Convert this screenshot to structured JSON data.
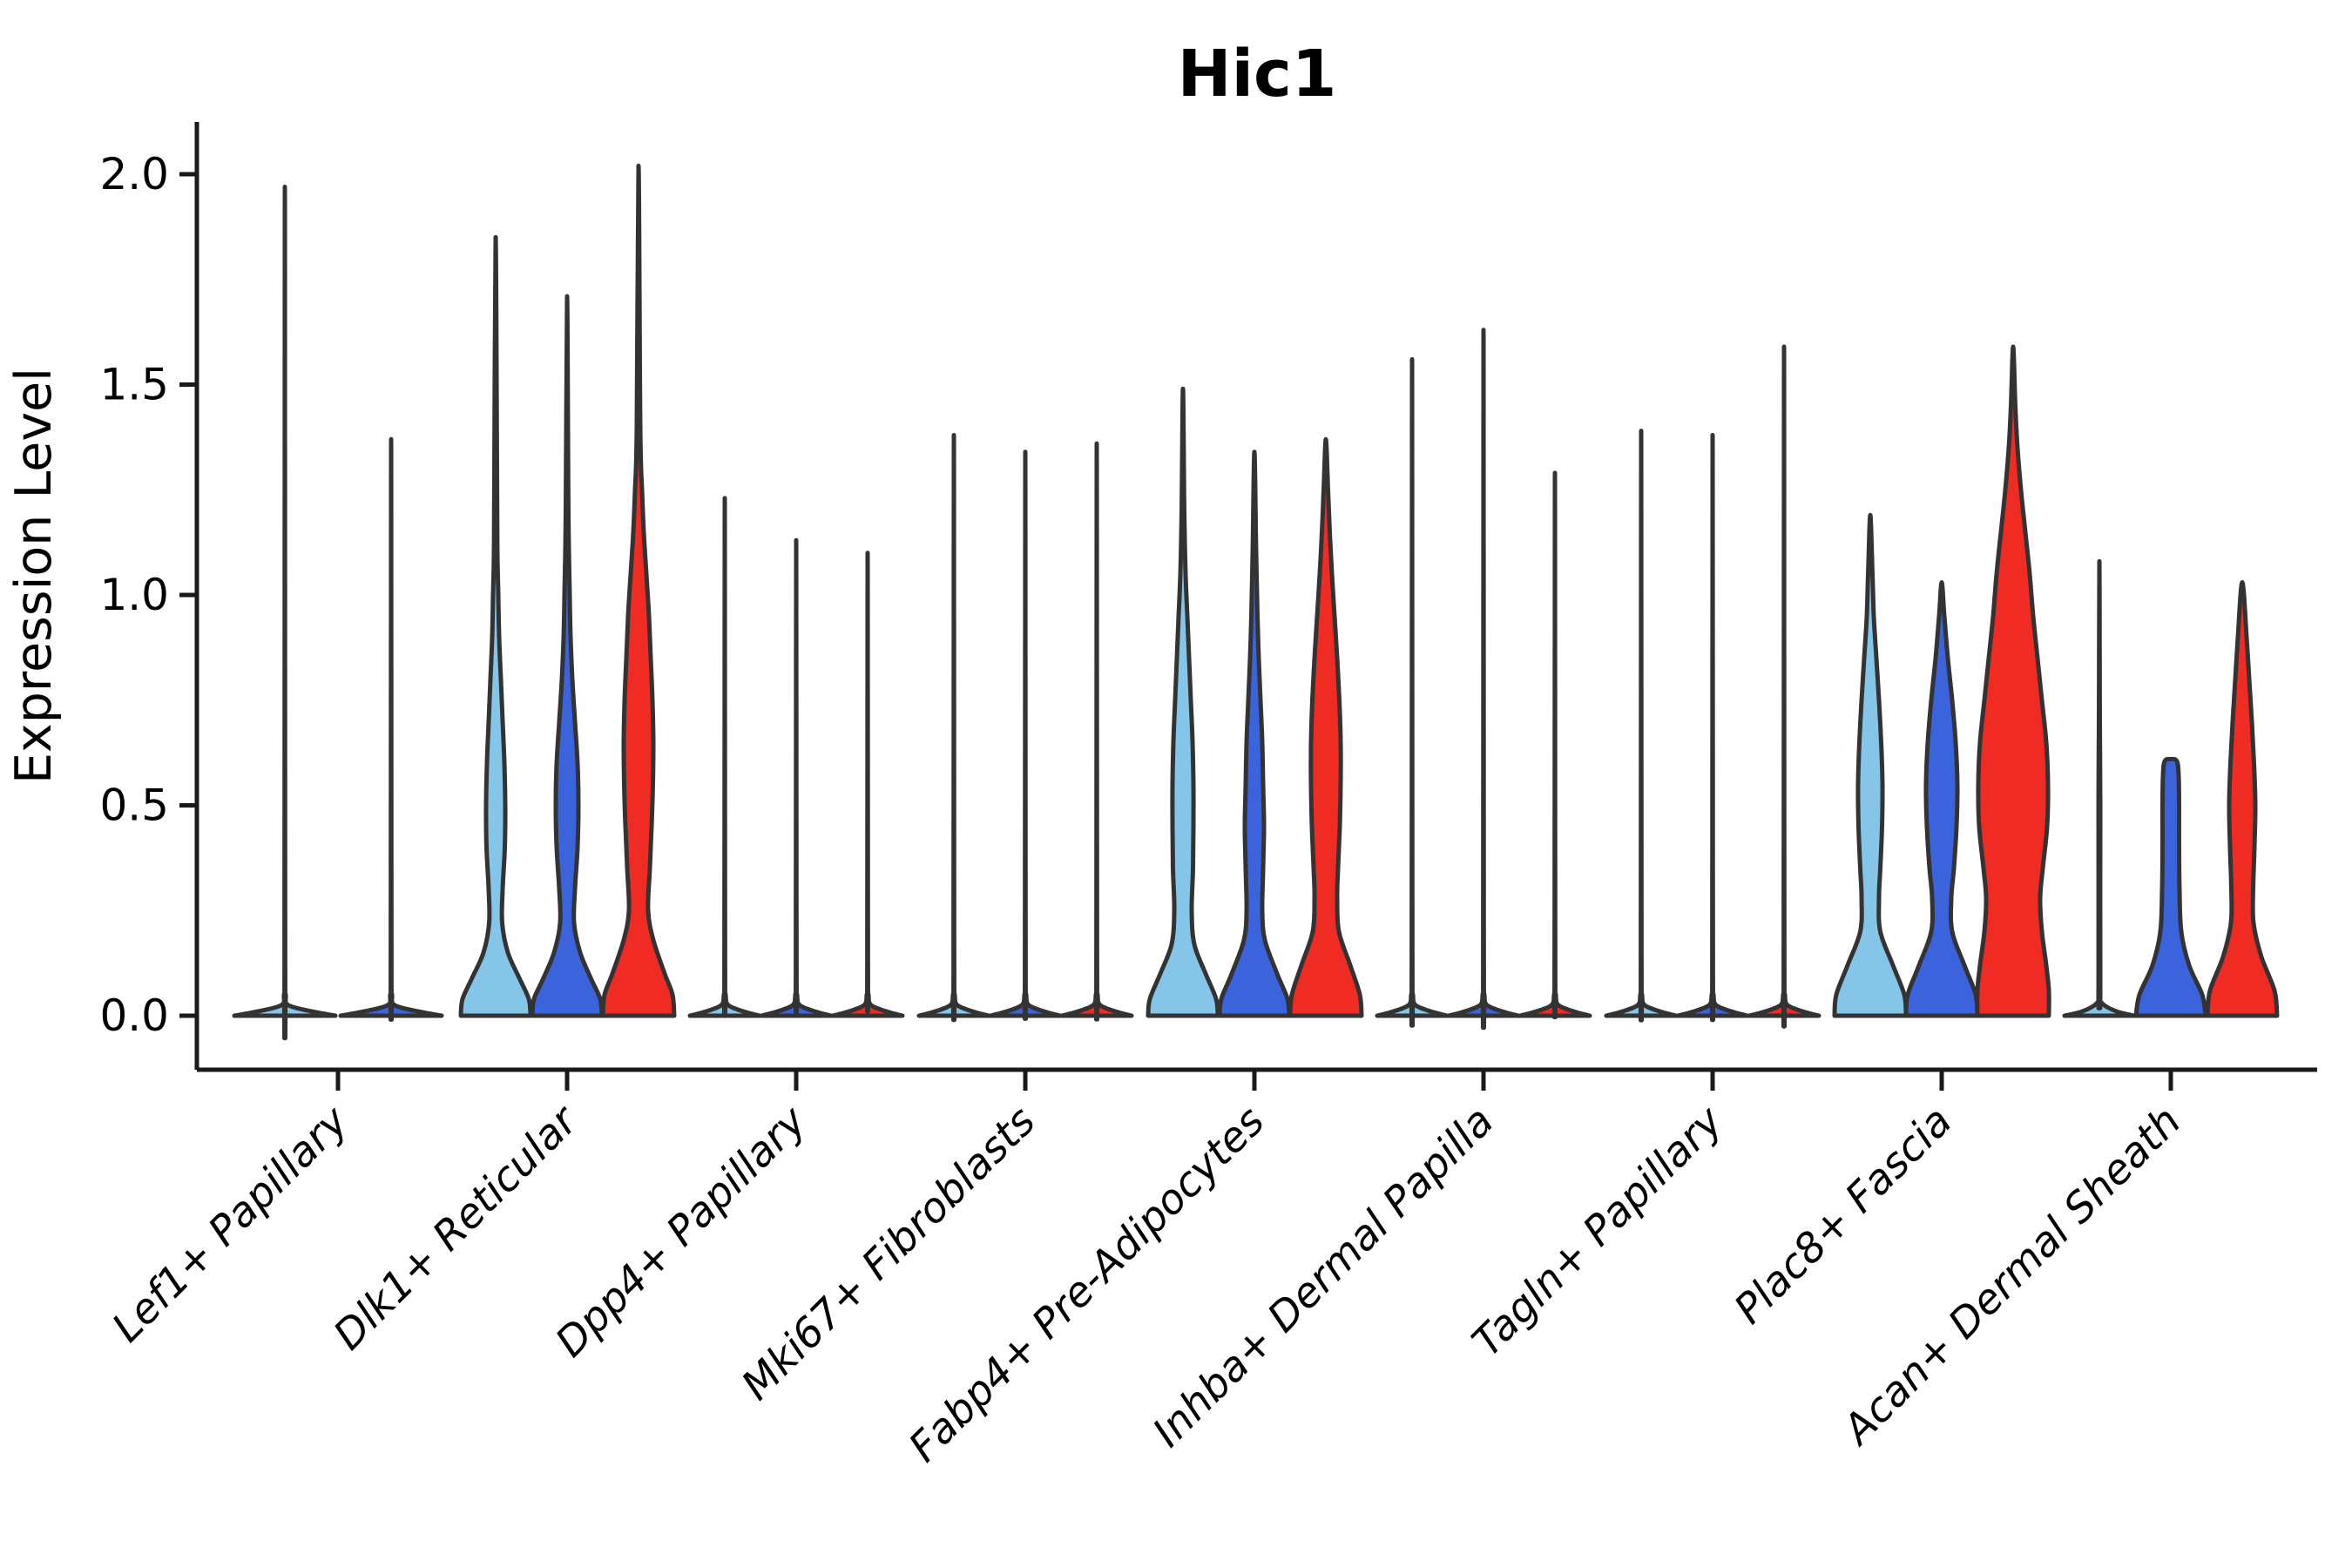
{
  "chart_data": {
    "type": "violin",
    "title": "Hic1",
    "xlabel": "",
    "ylabel": "Expression Level",
    "ylim": [
      -0.13,
      2.13
    ],
    "grid": false,
    "legend": "none",
    "ytick_labels": [
      "2.0",
      "1.5",
      "1.0",
      "0.5",
      "0.0"
    ],
    "ytick_values": [
      2.0,
      1.5,
      1.0,
      0.5,
      0.0
    ],
    "categories": [
      "Lef1+ Papillary",
      "Dlk1+ Reticular",
      "Dpp4+ Papillary",
      "Mki67+ Fibroblasts",
      "Fabp4+ Pre-Adipocytes",
      "Inhba+ Dermal Papilla",
      "Tagln+ Papillary",
      "Plac8+ Fascia",
      "Acan+ Dermal Sheath"
    ],
    "split_colors": {
      "lightblue": "#85C6E8",
      "darkblue": "#3A63DC",
      "red": "#EF2B24"
    },
    "outline_color": "#333333",
    "axis_color": "#1A1A1A",
    "groups": [
      {
        "category": "Lef1+ Papillary",
        "violins": [
          {
            "split": "lightblue",
            "offset": -61,
            "pancake": true,
            "halfwidth": 58,
            "max": 1.97
          },
          {
            "split": "darkblue",
            "offset": 61,
            "pancake": true,
            "halfwidth": 58,
            "max": 1.37
          }
        ]
      },
      {
        "category": "Dlk1+ Reticular",
        "violins": [
          {
            "split": "lightblue",
            "offset": -82,
            "max": 1.85,
            "profile": [
              [
                0,
                40
              ],
              [
                0.04,
                38
              ],
              [
                0.09,
                27
              ],
              [
                0.15,
                14
              ],
              [
                0.22,
                7.5
              ],
              [
                0.3,
                8
              ],
              [
                0.4,
                10.5
              ],
              [
                0.5,
                11
              ],
              [
                0.6,
                10
              ],
              [
                0.7,
                8
              ],
              [
                0.8,
                6
              ],
              [
                0.9,
                4
              ],
              [
                1.0,
                3
              ],
              [
                1.1,
                2
              ],
              [
                1.3,
                1.5
              ],
              [
                1.85,
                0
              ]
            ]
          },
          {
            "split": "darkblue",
            "offset": 0,
            "max": 1.71,
            "profile": [
              [
                0,
                40
              ],
              [
                0.04,
                38
              ],
              [
                0.09,
                27
              ],
              [
                0.15,
                15
              ],
              [
                0.22,
                8
              ],
              [
                0.3,
                9
              ],
              [
                0.4,
                12
              ],
              [
                0.5,
                13
              ],
              [
                0.6,
                12
              ],
              [
                0.7,
                9
              ],
              [
                0.8,
                6
              ],
              [
                0.9,
                4
              ],
              [
                1.0,
                3
              ],
              [
                1.2,
                1.5
              ],
              [
                1.71,
                0
              ]
            ]
          },
          {
            "split": "red",
            "offset": 82,
            "max": 2.02,
            "profile": [
              [
                0,
                41
              ],
              [
                0.05,
                39
              ],
              [
                0.1,
                30
              ],
              [
                0.18,
                17
              ],
              [
                0.25,
                11
              ],
              [
                0.35,
                13
              ],
              [
                0.45,
                15
              ],
              [
                0.55,
                16.5
              ],
              [
                0.65,
                17
              ],
              [
                0.75,
                16
              ],
              [
                0.85,
                14
              ],
              [
                0.95,
                12
              ],
              [
                1.05,
                9
              ],
              [
                1.15,
                6
              ],
              [
                1.25,
                4
              ],
              [
                1.4,
                2
              ],
              [
                2.02,
                0
              ]
            ]
          }
        ]
      },
      {
        "category": "Dpp4+ Papillary",
        "violins": [
          {
            "split": "lightblue",
            "offset": -82,
            "pancake": true,
            "halfwidth": 40,
            "max": 1.23
          },
          {
            "split": "darkblue",
            "offset": 0,
            "pancake": true,
            "halfwidth": 40,
            "max": 1.13
          },
          {
            "split": "red",
            "offset": 82,
            "pancake": true,
            "halfwidth": 40,
            "max": 1.1
          }
        ]
      },
      {
        "category": "Mki67+ Fibroblasts",
        "violins": [
          {
            "split": "lightblue",
            "offset": -82,
            "pancake": true,
            "halfwidth": 40,
            "max": 1.38
          },
          {
            "split": "darkblue",
            "offset": 0,
            "pancake": true,
            "halfwidth": 40,
            "max": 1.34
          },
          {
            "split": "red",
            "offset": 82,
            "pancake": true,
            "halfwidth": 40,
            "max": 1.36
          }
        ]
      },
      {
        "category": "Fabp4+ Pre-Adipocytes",
        "violins": [
          {
            "split": "lightblue",
            "offset": -82,
            "max": 1.49,
            "profile": [
              [
                0,
                40
              ],
              [
                0.04,
                38
              ],
              [
                0.1,
                26
              ],
              [
                0.17,
                13
              ],
              [
                0.25,
                10
              ],
              [
                0.35,
                11.5
              ],
              [
                0.45,
                12
              ],
              [
                0.55,
                12
              ],
              [
                0.65,
                11
              ],
              [
                0.75,
                9
              ],
              [
                0.85,
                7
              ],
              [
                0.95,
                5
              ],
              [
                1.05,
                3
              ],
              [
                1.2,
                1.5
              ],
              [
                1.49,
                0
              ]
            ]
          },
          {
            "split": "darkblue",
            "offset": 0,
            "max": 1.34,
            "profile": [
              [
                0,
                40
              ],
              [
                0.04,
                38
              ],
              [
                0.1,
                26
              ],
              [
                0.18,
                12
              ],
              [
                0.25,
                9
              ],
              [
                0.35,
                10
              ],
              [
                0.45,
                11
              ],
              [
                0.55,
                10
              ],
              [
                0.65,
                9
              ],
              [
                0.75,
                7
              ],
              [
                0.85,
                5
              ],
              [
                0.95,
                3.5
              ],
              [
                1.1,
                2
              ],
              [
                1.34,
                0
              ]
            ]
          },
          {
            "split": "red",
            "offset": 82,
            "max": 1.37,
            "profile": [
              [
                0,
                41
              ],
              [
                0.05,
                39
              ],
              [
                0.12,
                28
              ],
              [
                0.2,
                15
              ],
              [
                0.28,
                13
              ],
              [
                0.35,
                14
              ],
              [
                0.45,
                16
              ],
              [
                0.55,
                17
              ],
              [
                0.65,
                17
              ],
              [
                0.75,
                15.5
              ],
              [
                0.85,
                13
              ],
              [
                0.95,
                10
              ],
              [
                1.05,
                7
              ],
              [
                1.15,
                4.5
              ],
              [
                1.25,
                2.5
              ],
              [
                1.37,
                0
              ]
            ]
          }
        ]
      },
      {
        "category": "Inhba+ Dermal Papilla",
        "violins": [
          {
            "split": "lightblue",
            "offset": -82,
            "pancake": true,
            "halfwidth": 40,
            "max": 1.56
          },
          {
            "split": "darkblue",
            "offset": 0,
            "pancake": true,
            "halfwidth": 40,
            "max": 1.63
          },
          {
            "split": "red",
            "offset": 82,
            "pancake": true,
            "halfwidth": 40,
            "max": 1.29
          }
        ]
      },
      {
        "category": "Tagln+ Papillary",
        "violins": [
          {
            "split": "lightblue",
            "offset": -82,
            "pancake": true,
            "halfwidth": 40,
            "max": 1.39
          },
          {
            "split": "darkblue",
            "offset": 0,
            "pancake": true,
            "halfwidth": 40,
            "max": 1.38
          },
          {
            "split": "red",
            "offset": 82,
            "pancake": true,
            "halfwidth": 40,
            "max": 1.59
          }
        ]
      },
      {
        "category": "Plac8+ Fascia",
        "violins": [
          {
            "split": "lightblue",
            "offset": -82,
            "max": 1.19,
            "profile": [
              [
                0,
                41
              ],
              [
                0.05,
                39
              ],
              [
                0.12,
                26
              ],
              [
                0.2,
                11.5
              ],
              [
                0.28,
                10
              ],
              [
                0.35,
                11.5
              ],
              [
                0.45,
                13.5
              ],
              [
                0.55,
                14
              ],
              [
                0.65,
                12.5
              ],
              [
                0.75,
                10
              ],
              [
                0.85,
                7
              ],
              [
                0.95,
                4
              ],
              [
                1.05,
                2.5
              ],
              [
                1.19,
                0
              ]
            ]
          },
          {
            "split": "darkblue",
            "offset": 0,
            "max": 1.03,
            "profile": [
              [
                0,
                41
              ],
              [
                0.05,
                39
              ],
              [
                0.12,
                26
              ],
              [
                0.2,
                12
              ],
              [
                0.28,
                11
              ],
              [
                0.35,
                14
              ],
              [
                0.45,
                17
              ],
              [
                0.55,
                18
              ],
              [
                0.65,
                16
              ],
              [
                0.75,
                12
              ],
              [
                0.85,
                7
              ],
              [
                0.95,
                3
              ],
              [
                1.03,
                0
              ]
            ]
          },
          {
            "split": "red",
            "offset": 82,
            "max": 1.59,
            "profile": [
              [
                0,
                41
              ],
              [
                0.06,
                41
              ],
              [
                0.12,
                38
              ],
              [
                0.2,
                33
              ],
              [
                0.28,
                31
              ],
              [
                0.35,
                34
              ],
              [
                0.45,
                39
              ],
              [
                0.55,
                40
              ],
              [
                0.65,
                38
              ],
              [
                0.75,
                33
              ],
              [
                0.85,
                28
              ],
              [
                0.95,
                23
              ],
              [
                1.05,
                19
              ],
              [
                1.15,
                14
              ],
              [
                1.25,
                9
              ],
              [
                1.35,
                5
              ],
              [
                1.45,
                2.5
              ],
              [
                1.59,
                0
              ]
            ]
          }
        ]
      },
      {
        "category": "Acan+ Dermal Sheath",
        "violins": [
          {
            "split": "lightblue",
            "offset": -82,
            "max": 1.08,
            "profile": [
              [
                0,
                40
              ],
              [
                0.01,
                20
              ],
              [
                0.03,
                3
              ],
              [
                0.06,
                1
              ],
              [
                0.5,
                1
              ],
              [
                0.7,
                0.5
              ],
              [
                1.08,
                0
              ]
            ]
          },
          {
            "split": "darkblue",
            "offset": 0,
            "max": 0.61,
            "profile": [
              [
                0,
                40
              ],
              [
                0.05,
                36
              ],
              [
                0.12,
                21
              ],
              [
                0.2,
                12
              ],
              [
                0.3,
                10
              ],
              [
                0.4,
                9.5
              ],
              [
                0.5,
                9.5
              ],
              [
                0.57,
                9
              ],
              [
                0.605,
                7
              ],
              [
                0.61,
                0
              ]
            ]
          },
          {
            "split": "red",
            "offset": 82,
            "max": 1.03,
            "profile": [
              [
                0,
                40
              ],
              [
                0.06,
                37
              ],
              [
                0.14,
                22
              ],
              [
                0.22,
                13
              ],
              [
                0.3,
                12.5
              ],
              [
                0.4,
                14
              ],
              [
                0.5,
                15
              ],
              [
                0.6,
                13.5
              ],
              [
                0.7,
                11
              ],
              [
                0.8,
                8
              ],
              [
                0.9,
                5
              ],
              [
                1.03,
                0
              ]
            ]
          }
        ]
      }
    ]
  }
}
